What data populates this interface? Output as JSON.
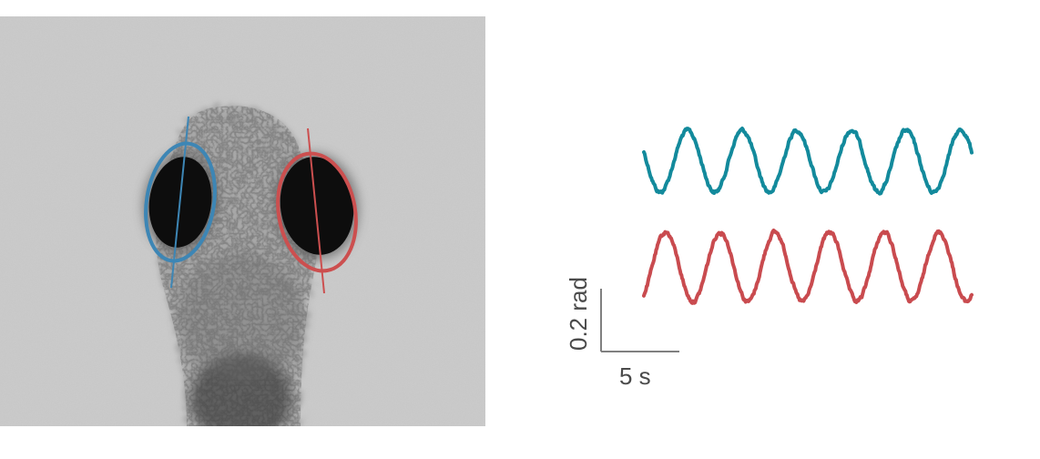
{
  "image": {
    "subject": "larval-fish-head-top-view",
    "left_eye_color": "#3d86b5",
    "right_eye_color": "#cc4f4f",
    "background": "#c9c9c9"
  },
  "traces": {
    "series": [
      {
        "color": "#138a9c",
        "unit": "rad",
        "cycles": 6,
        "peak_to_peak_rad": 0.2
      },
      {
        "color": "#c94b4f",
        "unit": "rad",
        "cycles": 6,
        "peak_to_peak_rad": 0.2
      }
    ]
  },
  "scale_bar": {
    "vertical_label": "0.2 rad",
    "horizontal_label": "5 s",
    "color": "#808080"
  }
}
